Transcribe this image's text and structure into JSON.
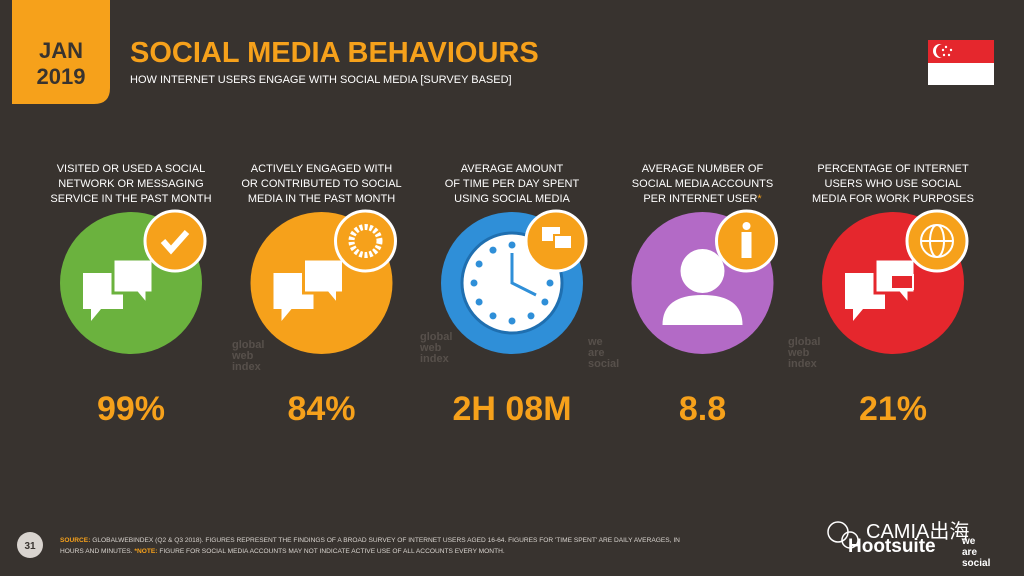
{
  "header": {
    "date": [
      "JAN",
      "2019"
    ],
    "title": "SOCIAL MEDIA BEHAVIOURS",
    "subtitle": "HOW INTERNET USERS ENGAGE WITH SOCIAL MEDIA [SURVEY BASED]"
  },
  "stats": [
    {
      "label": [
        "VISITED OR USED A SOCIAL",
        "NETWORK OR MESSAGING",
        "SERVICE IN THE PAST MONTH"
      ],
      "value": "99%",
      "color": "#6bb23e"
    },
    {
      "label": [
        "ACTIVELY ENGAGED WITH",
        "OR CONTRIBUTED TO SOCIAL",
        "MEDIA IN THE PAST MONTH"
      ],
      "value": "84%",
      "color": "#f6a11b"
    },
    {
      "label": [
        "AVERAGE AMOUNT",
        "OF TIME PER DAY SPENT",
        "USING SOCIAL MEDIA"
      ],
      "value": "2H 08M",
      "color": "#2f8fd8"
    },
    {
      "label": [
        "AVERAGE NUMBER OF",
        "SOCIAL MEDIA ACCOUNTS",
        "PER INTERNET USER"
      ],
      "marker": "*",
      "value": "8.8",
      "color": "#b36ac6"
    },
    {
      "label": [
        "PERCENTAGE OF INTERNET",
        "USERS WHO USE SOCIAL",
        "MEDIA FOR WORK PURPOSES"
      ],
      "value": "21%",
      "color": "#e5272d"
    }
  ],
  "watermarks": {
    "globalwebindex": [
      "global",
      "web",
      "index"
    ],
    "wearesocial": [
      "we",
      "are",
      "social"
    ]
  },
  "footer": {
    "page": "31",
    "source_label": "SOURCE:",
    "source": [
      "GLOBALWEBINDEX (Q2 & Q3 2018). FIGURES REPRESENT THE FINDINGS OF A BROAD SURVEY OF INTERNET USERS AGED 16-64. FIGURES FOR 'TIME SPENT' ARE DAILY AVERAGES, IN",
      "HOURS AND MINUTES."
    ],
    "note_label": "*NOTE:",
    "note": "FIGURE FOR SOCIAL MEDIA ACCOUNTS MAY NOT INDICATE ACTIVE USE OF ALL ACCOUNTS EVERY MONTH."
  },
  "branding": {
    "hootsuite": "Hootsuite",
    "wearesocial": [
      "we",
      "are",
      "social"
    ],
    "overlay": "CAMIA出海"
  }
}
